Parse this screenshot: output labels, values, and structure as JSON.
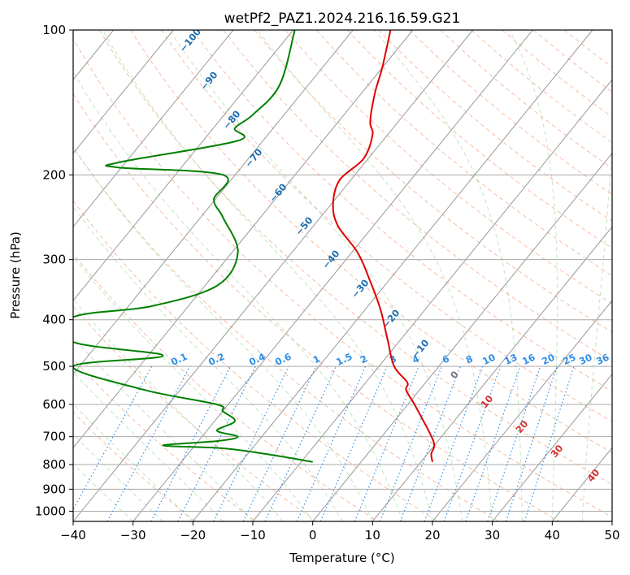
{
  "chart_data": {
    "type": "line",
    "title": "wetPf2_PAZ1.2024.216.16.59.G21",
    "xlabel": "Temperature (°C)",
    "ylabel": "Pressure (hPa)",
    "xlim": [
      -40,
      50
    ],
    "ylim": [
      1050,
      100
    ],
    "y_scale": "log",
    "x_ticks": [
      -40,
      -30,
      -20,
      -10,
      0,
      10,
      20,
      30,
      40,
      50
    ],
    "x_tick_labels": [
      "−40",
      "−30",
      "−20",
      "−10",
      "0",
      "10",
      "20",
      "30",
      "40",
      "50"
    ],
    "y_ticks": [
      100,
      200,
      300,
      400,
      500,
      600,
      700,
      800,
      900,
      1000
    ],
    "y_tick_labels": [
      "100",
      "200",
      "300",
      "400",
      "500",
      "600",
      "700",
      "800",
      "900",
      "1000"
    ],
    "grid": true,
    "series": [
      {
        "color": "#e00000",
        "x": [
          20,
          19.8,
          20.3,
          19.6,
          17,
          15.6,
          15.8,
          13.6,
          12.5,
          11.3,
          9.5,
          7.5,
          4.2,
          3.4,
          4.5,
          8.5,
          10,
          9.6,
          10.4,
          11.6,
          13
        ],
        "p": [
          790,
          760,
          730,
          690,
          600,
          560,
          540,
          500,
          440,
          380,
          330,
          290,
          255,
          230,
          205,
          185,
          165,
          155,
          135,
          120,
          100
        ]
      },
      {
        "color": "#008000",
        "x": [
          0,
          -8,
          -15,
          -25,
          -16,
          -12.5,
          -16,
          -13,
          -15,
          -16,
          -28,
          -40,
          -25,
          -40,
          -40,
          -27,
          -16,
          -12.5,
          -15,
          -16.5,
          -15,
          -32.5,
          -32,
          -12.6,
          -13,
          -10,
          -5.5,
          -3
        ],
        "p": [
          790,
          760,
          740,
          730,
          715,
          700,
          680,
          650,
          620,
          600,
          560,
          500,
          475,
          445,
          395,
          375,
          340,
          290,
          245,
          225,
          200,
          193,
          188,
          170,
          160,
          150,
          130,
          100
        ]
      }
    ],
    "dry_adiabats_labels": [
      "−100",
      "−90",
      "−80",
      "−70",
      "−60",
      "−50",
      "−40",
      "−30",
      "−20",
      "−10",
      "0",
      "10",
      "20",
      "30",
      "40"
    ],
    "mixing_ratio_labels": [
      "0.1",
      "0.2",
      "0.4",
      "0.6",
      "1",
      "1.5",
      "2",
      "3",
      "4",
      "6",
      "8",
      "10",
      "13",
      "16",
      "20",
      "25",
      "30",
      "36"
    ]
  }
}
